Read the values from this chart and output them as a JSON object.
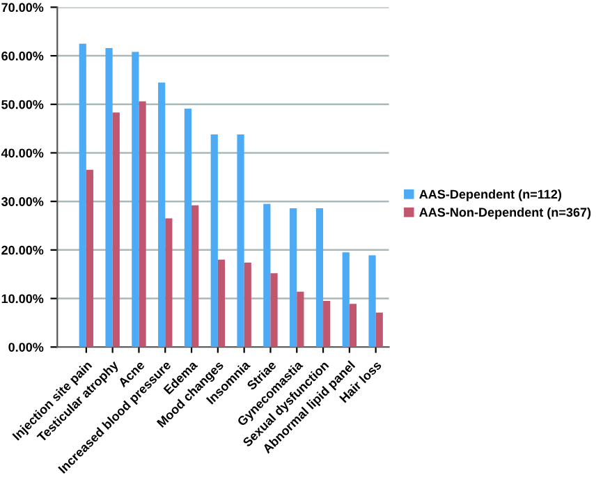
{
  "chart_data": {
    "type": "bar",
    "categories": [
      "Injection site pain",
      "Testicular atrophy",
      "Acne",
      "Increased blood pressure",
      "Edema",
      "Mood changes",
      "Insomnia",
      "Striae",
      "Gynecomastia",
      "Sexual dysfunction",
      "Abnormal lipid panel",
      "Hair loss"
    ],
    "series": [
      {
        "name": "AAS-Dependent (n=112)",
        "color": "#4daaf5",
        "values": [
          62.5,
          61.6,
          60.8,
          54.5,
          49.1,
          43.8,
          43.8,
          29.5,
          28.6,
          28.6,
          19.5,
          18.9
        ]
      },
      {
        "name": "AAS-Non-Dependent (n=367)",
        "color": "#c0576e",
        "values": [
          36.5,
          48.3,
          50.6,
          26.5,
          29.2,
          18.0,
          17.4,
          15.2,
          11.4,
          9.5,
          8.9,
          7.1
        ]
      }
    ],
    "ylim": [
      0,
      70
    ],
    "yticks": [
      {
        "value": 0,
        "label": "0.00%"
      },
      {
        "value": 10,
        "label": "10.00%"
      },
      {
        "value": 20,
        "label": "20.00%"
      },
      {
        "value": 30,
        "label": "30.00%"
      },
      {
        "value": 40,
        "label": "40.00%"
      },
      {
        "value": 50,
        "label": "50.00%"
      },
      {
        "value": 60,
        "label": "60.00%"
      },
      {
        "value": 70,
        "label": "70.00%"
      }
    ],
    "grid": "y",
    "legend": "right"
  }
}
